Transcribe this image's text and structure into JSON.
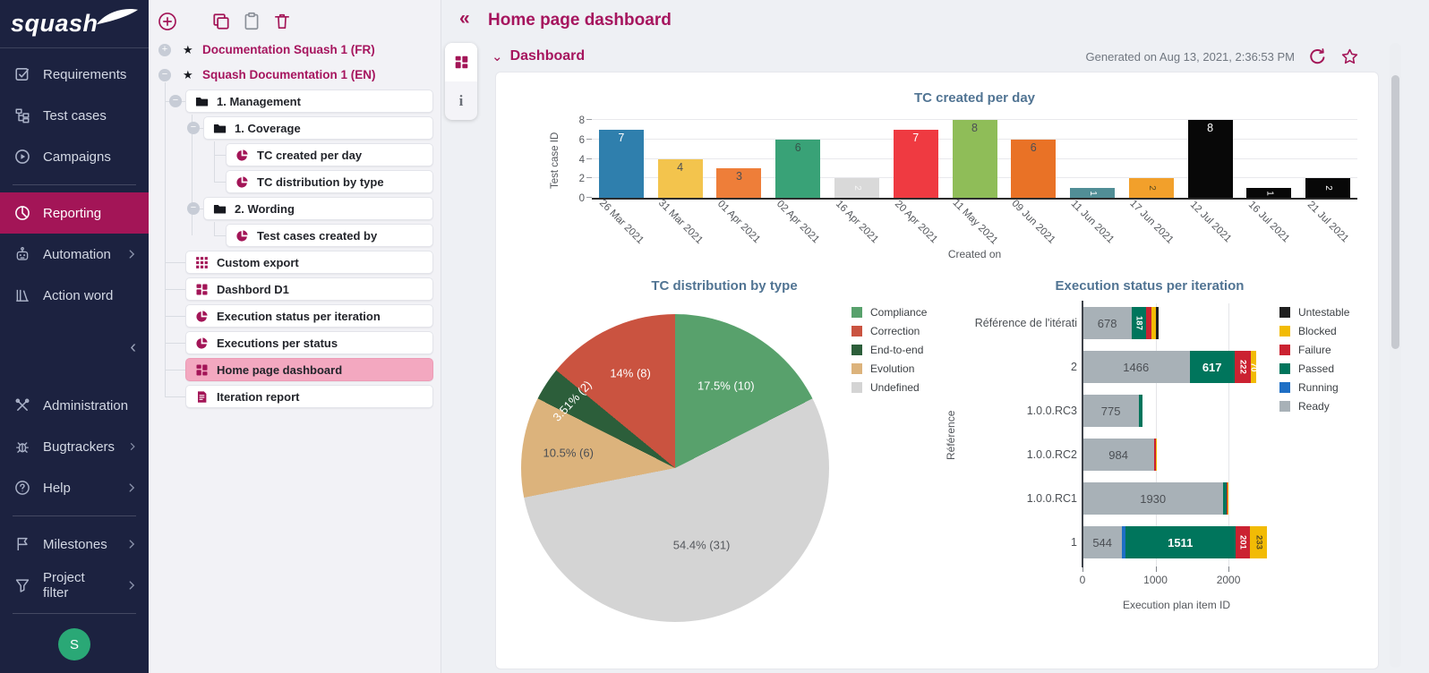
{
  "app": {
    "logo_text": "squash"
  },
  "sidebar": {
    "items_top": [
      {
        "label": "Requirements",
        "icon": "requirements"
      },
      {
        "label": "Test cases",
        "icon": "test-cases"
      },
      {
        "label": "Campaigns",
        "icon": "campaigns",
        "divider_after": true
      },
      {
        "label": "Reporting",
        "icon": "reporting",
        "active": true
      },
      {
        "label": "Automation",
        "icon": "automation",
        "chevron": true
      },
      {
        "label": "Action word",
        "icon": "action-word"
      }
    ],
    "collapse_icon": "‹",
    "items_bottom": [
      {
        "label": "Administration",
        "icon": "administration",
        "chevron": true
      },
      {
        "label": "Bugtrackers",
        "icon": "bugtrackers",
        "chevron": true
      },
      {
        "label": "Help",
        "icon": "help",
        "chevron": true,
        "divider_after": true
      },
      {
        "label": "Milestones",
        "icon": "milestones",
        "chevron": true
      },
      {
        "label": "Project filter",
        "icon": "project-filter",
        "chevron": true,
        "divider_after": true
      }
    ],
    "avatar_initial": "S"
  },
  "tree": {
    "toolbar": [
      {
        "name": "add",
        "icon": "plus-circle"
      },
      {
        "name": "copy",
        "icon": "copy"
      },
      {
        "name": "paste",
        "icon": "clipboard"
      },
      {
        "name": "delete",
        "icon": "trash"
      }
    ],
    "projects": [
      {
        "label": "Documentation Squash 1 (FR)",
        "toggle": "+",
        "star": "★"
      },
      {
        "label": "Squash Documentation 1 (EN)",
        "toggle": "−",
        "star": "★"
      }
    ],
    "nodes": [
      {
        "label": "1. Management",
        "icon": "folder",
        "depth": 0,
        "toggle": "−"
      },
      {
        "label": "1. Coverage",
        "icon": "folder",
        "depth": 1,
        "toggle": "−"
      },
      {
        "label": "TC created per day",
        "icon": "pie",
        "depth": 2
      },
      {
        "label": "TC distribution by type",
        "icon": "pie",
        "depth": 2
      },
      {
        "label": "2. Wording",
        "icon": "folder",
        "depth": 1,
        "toggle": "−"
      },
      {
        "label": "Test cases created by",
        "icon": "pie",
        "depth": 2
      },
      {
        "label": "Custom export",
        "icon": "grid",
        "depth": 0
      },
      {
        "label": "Dashbord D1",
        "icon": "dashboard",
        "depth": 0
      },
      {
        "label": "Execution status per iteration",
        "icon": "pie",
        "depth": 0
      },
      {
        "label": "Executions per status",
        "icon": "pie",
        "depth": 0
      },
      {
        "label": "Home page dashboard",
        "icon": "dashboard",
        "depth": 0,
        "selected": true
      },
      {
        "label": "Iteration report",
        "icon": "report",
        "depth": 0
      }
    ]
  },
  "header": {
    "back_icon": "«",
    "title": "Home page dashboard",
    "info_tab_label": "i"
  },
  "section": {
    "chevron": "⌄",
    "label": "Dashboard",
    "generated_text": "Generated on Aug 13, 2021, 2:36:53 PM"
  },
  "colors": {
    "accent": "#a31557",
    "selected_pink": "#f3a8c0",
    "avatar_green": "#2aa876"
  },
  "chart_data": [
    {
      "type": "bar",
      "title": "TC created per day",
      "xlabel": "Created on",
      "ylabel": "Test case ID",
      "ylim": [
        0,
        8
      ],
      "yticks": [
        0,
        2,
        4,
        6,
        8
      ],
      "categories": [
        "26 Mar 2021",
        "31 Mar 2021",
        "01 Apr 2021",
        "02 Apr 2021",
        "16 Apr 2021",
        "20 Apr 2021",
        "11 May 2021",
        "09 Jun 2021",
        "11 Jun 2021",
        "17 Jun 2021",
        "12 Jul 2021",
        "16 Jul 2021",
        "21 Jul 2021"
      ],
      "values": [
        7,
        4,
        3,
        6,
        2,
        7,
        8,
        6,
        1,
        2,
        8,
        1,
        2
      ],
      "bar_colors": [
        "#2f7fad",
        "#f3c44d",
        "#ee7e39",
        "#39a277",
        "#d9d9d9",
        "#ef3a41",
        "#8fbd58",
        "#e97226",
        "#518e96",
        "#f2a02b",
        "#080808",
        "#080808",
        "#080808"
      ],
      "label_colors": [
        "#ffffff",
        "#4c4f54",
        "#4c4f54",
        "#35544a",
        "#f5f5f5",
        "#ffffff",
        "#4c4f54",
        "#4c4f54",
        "#ffffff",
        "#5a4a20",
        "#ffffff",
        "#ffffff",
        "#ffffff"
      ],
      "grid": true,
      "legend_position": "none"
    },
    {
      "type": "pie",
      "title": "TC distribution by type",
      "slices": [
        {
          "label": "Compliance",
          "value": 10,
          "pct_label": "17.5% (10)",
          "color": "#58a16c",
          "label_color": "#ffffff"
        },
        {
          "label": "Undefined",
          "value": 31,
          "pct_label": "54.4% (31)",
          "color": "#d4d4d4",
          "label_color": "#56595e"
        },
        {
          "label": "Evolution",
          "value": 6,
          "pct_label": "10.5% (6)",
          "color": "#dcb37c",
          "label_color": "#4c4f54"
        },
        {
          "label": "End-to-end",
          "value": 2,
          "pct_label": "3.51% (2)",
          "color": "#2c5e3a",
          "label_color": "#ffffff"
        },
        {
          "label": "Correction",
          "value": 8,
          "pct_label": "14% (8)",
          "color": "#ca5340",
          "label_color": "#ffffff"
        }
      ],
      "legend": [
        {
          "label": "Compliance",
          "color": "#58a16c"
        },
        {
          "label": "Correction",
          "color": "#ca5340"
        },
        {
          "label": "End-to-end",
          "color": "#2c5e3a"
        },
        {
          "label": "Evolution",
          "color": "#dcb37c"
        },
        {
          "label": "Undefined",
          "color": "#d4d4d4"
        }
      ],
      "legend_position": "right"
    },
    {
      "type": "stacked-bar-horizontal",
      "title": "Execution status per iteration",
      "xlabel": "Execution plan item ID",
      "ylabel": "Référence",
      "xticks": [
        0,
        1000,
        2000
      ],
      "xmax": 2600,
      "legend_position": "right",
      "statuses": [
        {
          "name": "Untestable",
          "color": "#1f1f1f"
        },
        {
          "name": "Blocked",
          "color": "#f2bb05"
        },
        {
          "name": "Failure",
          "color": "#cb2231"
        },
        {
          "name": "Passed",
          "color": "#00755c"
        },
        {
          "name": "Running",
          "color": "#1e6fc5"
        },
        {
          "name": "Ready",
          "color": "#a8b1b7"
        }
      ],
      "rows": [
        {
          "category": "Référence de l'itérati",
          "segments": [
            {
              "status": "Ready",
              "value": 678,
              "label": "678",
              "label_color": "#4c5055"
            },
            {
              "status": "Passed",
              "value": 187,
              "label": "187",
              "label_color": "#ffffff"
            },
            {
              "status": "Failure",
              "value": 80,
              "label": "",
              "label_color": ""
            },
            {
              "status": "Blocked",
              "value": 60,
              "label": "",
              "label_color": ""
            },
            {
              "status": "Untestable",
              "value": 40,
              "label": "",
              "label_color": ""
            }
          ]
        },
        {
          "category": "2",
          "segments": [
            {
              "status": "Ready",
              "value": 1466,
              "label": "1466",
              "label_color": "#4c5055"
            },
            {
              "status": "Passed",
              "value": 617,
              "label": "617",
              "label_color": "#ffffff"
            },
            {
              "status": "Failure",
              "value": 222,
              "label": "222",
              "label_color": "#ffffff"
            },
            {
              "status": "Blocked",
              "value": 70,
              "label": "70",
              "label_color": "#ffffff"
            }
          ]
        },
        {
          "category": "1.0.0.RC3",
          "segments": [
            {
              "status": "Ready",
              "value": 775,
              "label": "775",
              "label_color": "#4c5055"
            },
            {
              "status": "Passed",
              "value": 45,
              "label": "",
              "label_color": ""
            }
          ]
        },
        {
          "category": "1.0.0.RC2",
          "segments": [
            {
              "status": "Ready",
              "value": 984,
              "label": "984",
              "label_color": "#4c5055"
            },
            {
              "status": "Failure",
              "value": 25,
              "label": "",
              "label_color": ""
            },
            {
              "status": "Blocked",
              "value": 15,
              "label": "",
              "label_color": ""
            }
          ]
        },
        {
          "category": "1.0.0.RC1",
          "segments": [
            {
              "status": "Ready",
              "value": 1930,
              "label": "1930",
              "label_color": "#4c5055"
            },
            {
              "status": "Passed",
              "value": 40,
              "label": "",
              "label_color": ""
            },
            {
              "status": "Failure",
              "value": 15,
              "label": "",
              "label_color": ""
            },
            {
              "status": "Blocked",
              "value": 12,
              "label": "",
              "label_color": ""
            }
          ]
        },
        {
          "category": "1",
          "segments": [
            {
              "status": "Ready",
              "value": 544,
              "label": "544",
              "label_color": "#4c5055"
            },
            {
              "status": "Running",
              "value": 40,
              "label": "",
              "label_color": ""
            },
            {
              "status": "Passed",
              "value": 1511,
              "label": "1511",
              "label_color": "#ffffff"
            },
            {
              "status": "Failure",
              "value": 201,
              "label": "201",
              "label_color": "#ffffff"
            },
            {
              "status": "Blocked",
              "value": 233,
              "label": "233",
              "label_color": "#5a4a20"
            }
          ]
        }
      ]
    }
  ]
}
